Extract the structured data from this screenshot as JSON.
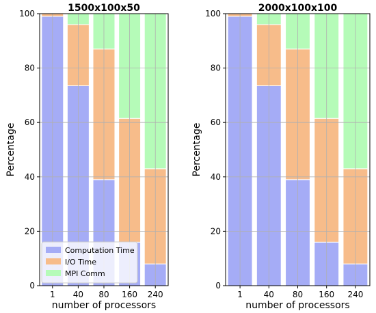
{
  "chart_data": [
    {
      "type": "bar",
      "stacked": true,
      "title": "1500x100x50",
      "xlabel": "number of processors",
      "ylabel": "Percentage",
      "ylim": [
        0,
        100
      ],
      "yticks": [
        0,
        20,
        40,
        60,
        80,
        100
      ],
      "grid": true,
      "legend_position": "lower-left",
      "categories": [
        "1",
        "40",
        "80",
        "160",
        "240"
      ],
      "series": [
        {
          "name": "Computation Time",
          "color": "#a5acf6",
          "values": [
            99,
            73.5,
            39,
            16,
            8
          ]
        },
        {
          "name": "I/O Time",
          "color": "#f7bc8a",
          "values": [
            1,
            22.5,
            48,
            45.5,
            35
          ]
        },
        {
          "name": "MPI Comm",
          "color": "#b5fbb8",
          "values": [
            0,
            4,
            13,
            38.5,
            57
          ]
        }
      ]
    },
    {
      "type": "bar",
      "stacked": true,
      "title": "2000x100x100",
      "xlabel": "number of processors",
      "ylabel": "Percentage",
      "ylim": [
        0,
        100
      ],
      "yticks": [
        0,
        20,
        40,
        60,
        80,
        100
      ],
      "grid": true,
      "categories": [
        "1",
        "40",
        "80",
        "160",
        "240"
      ],
      "series": [
        {
          "name": "Computation Time",
          "color": "#a5acf6",
          "values": [
            99,
            73.5,
            39,
            16,
            8
          ]
        },
        {
          "name": "I/O Time",
          "color": "#f7bc8a",
          "values": [
            1,
            22.5,
            48,
            45.5,
            35
          ]
        },
        {
          "name": "MPI Comm",
          "color": "#b5fbb8",
          "values": [
            0,
            4,
            13,
            38.5,
            57
          ]
        }
      ]
    }
  ]
}
